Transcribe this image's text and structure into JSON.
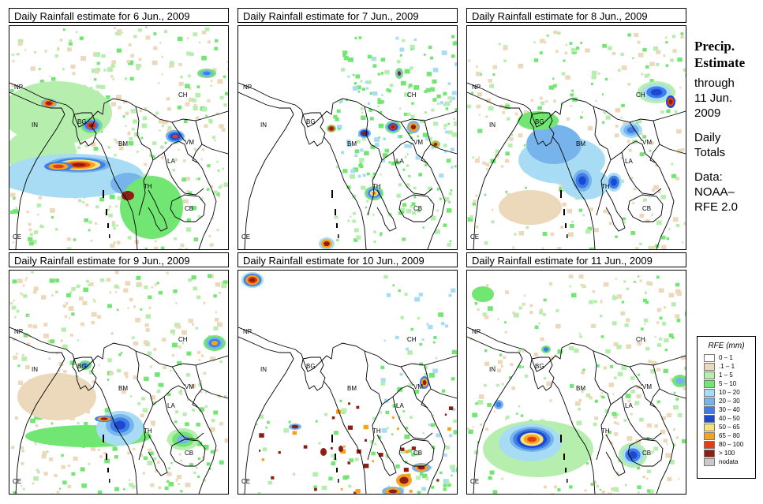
{
  "panels": [
    {
      "title": "Daily Rainfall estimate for  6 Jun., 2009",
      "scheme": "a"
    },
    {
      "title": "Daily Rainfall estimate for  7 Jun., 2009",
      "scheme": "b"
    },
    {
      "title": "Daily Rainfall estimate for  8 Jun., 2009",
      "scheme": "c"
    },
    {
      "title": "Daily Rainfall estimate for  9 Jun., 2009",
      "scheme": "d"
    },
    {
      "title": "Daily Rainfall estimate for  10 Jun., 2009",
      "scheme": "e"
    },
    {
      "title": "Daily Rainfall estimate for  11 Jun., 2009",
      "scheme": "f"
    }
  ],
  "map_labels": {
    "np": "NP",
    "in": "IN",
    "bg": "BG",
    "bm": "BM",
    "ch": "CH",
    "vm": "VM",
    "la": "LA",
    "th": "TH",
    "cb": "CB",
    "ce": "CE"
  },
  "side": {
    "title_line1": "Precip.",
    "title_line2": "Estimate",
    "through": "through",
    "date_line1": "11 Jun.",
    "date_line2": "2009",
    "daily1": "Daily",
    "daily2": "Totals",
    "data1": "Data:",
    "data2": "NOAA–",
    "data3": "RFE 2.0"
  },
  "legend": {
    "title": "RFE (mm)",
    "items": [
      {
        "label": "0 – 1",
        "color": "#ffffff"
      },
      {
        "label": ".1 – 1",
        "color": "#ecd8bb"
      },
      {
        "label": "1 – 5",
        "color": "#b6eeae"
      },
      {
        "label": "5 – 10",
        "color": "#72e672"
      },
      {
        "label": "10 – 20",
        "color": "#a8dcf4"
      },
      {
        "label": "20 – 30",
        "color": "#78b4ec"
      },
      {
        "label": "30 – 40",
        "color": "#3e7ee8"
      },
      {
        "label": "40 – 50",
        "color": "#1c48d2"
      },
      {
        "label": "50 – 65",
        "color": "#f6e27a"
      },
      {
        "label": "65 – 80",
        "color": "#f6a21e"
      },
      {
        "label": "80 – 100",
        "color": "#e43c14"
      },
      {
        "label": "> 100",
        "color": "#8c1e14"
      },
      {
        "label": "nodata",
        "color": "#c9c9c9"
      }
    ]
  }
}
